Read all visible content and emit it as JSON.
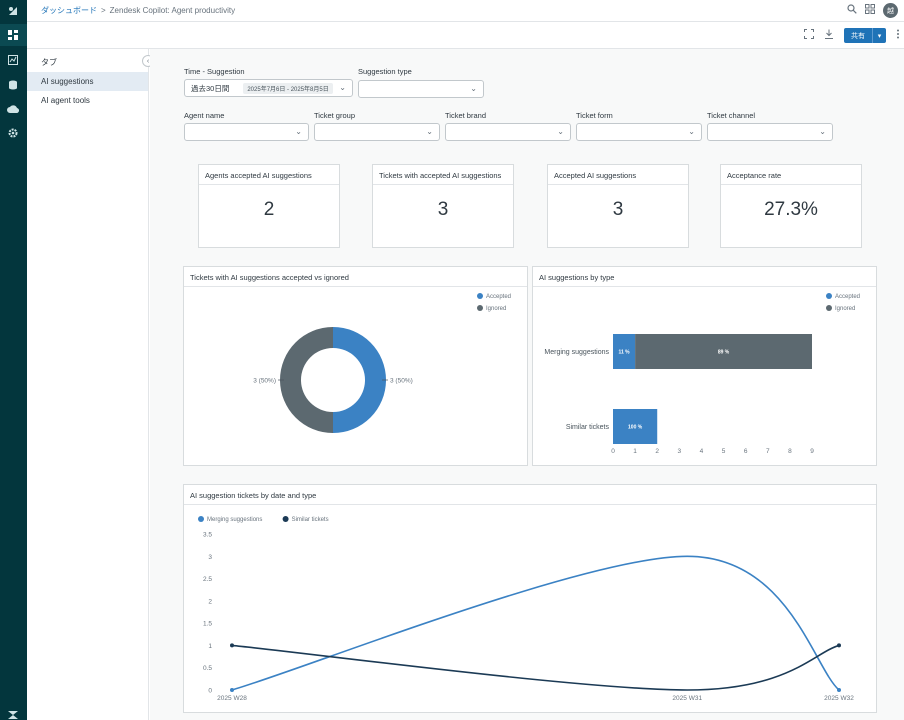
{
  "breadcrumb": {
    "dashboard": "ダッシュボード",
    "separator": ">",
    "current": "Zendesk Copilot: Agent productivity"
  },
  "user": {
    "avatar_initial": "越"
  },
  "toolbar": {
    "share_label": "共有"
  },
  "tabs": {
    "heading": "タブ",
    "items": [
      {
        "label": "AI suggestions",
        "active": true
      },
      {
        "label": "AI agent tools",
        "active": false
      }
    ]
  },
  "filters": {
    "time": {
      "label": "Time - Suggestion",
      "value": "過去30日間",
      "range": "2025年7月6日 - 2025年8月5日"
    },
    "suggestion_type": {
      "label": "Suggestion type",
      "value": ""
    },
    "agent_name": {
      "label": "Agent name",
      "value": ""
    },
    "ticket_group": {
      "label": "Ticket group",
      "value": ""
    },
    "ticket_brand": {
      "label": "Ticket brand",
      "value": ""
    },
    "ticket_form": {
      "label": "Ticket form",
      "value": ""
    },
    "ticket_channel": {
      "label": "Ticket channel",
      "value": ""
    }
  },
  "kpis": [
    {
      "title": "Agents accepted AI suggestions",
      "value": "2"
    },
    {
      "title": "Tickets with accepted AI suggestions",
      "value": "3"
    },
    {
      "title": "Accepted AI suggestions",
      "value": "3"
    },
    {
      "title": "Acceptance rate",
      "value": "27.3%"
    }
  ],
  "colors": {
    "accepted": "#3b82c4",
    "ignored": "#5c6970",
    "merging": "#3b82c4",
    "similar": "#1b3a55"
  },
  "chart_data": [
    {
      "type": "pie",
      "title": "Tickets with AI suggestions accepted vs ignored",
      "legend": [
        "Accepted",
        "Ignored"
      ],
      "legend_position": "top-right",
      "slices": [
        {
          "name": "Accepted",
          "value": 3,
          "label": "3 (50%)"
        },
        {
          "name": "Ignored",
          "value": 3,
          "label": "3 (50%)"
        }
      ]
    },
    {
      "type": "bar",
      "orientation": "horizontal",
      "stacked": true,
      "title": "AI suggestions by type",
      "legend": [
        "Accepted",
        "Ignored"
      ],
      "legend_position": "top-right",
      "categories": [
        "Merging suggestions",
        "Similar tickets"
      ],
      "series": [
        {
          "name": "Accepted",
          "values": [
            1,
            2
          ],
          "labels": [
            "11 %",
            "100 %"
          ]
        },
        {
          "name": "Ignored",
          "values": [
            8,
            0
          ],
          "labels": [
            "89 %",
            ""
          ]
        }
      ],
      "xticks": [
        "0",
        "1",
        "2",
        "3",
        "4",
        "5",
        "6",
        "7",
        "8",
        "9"
      ],
      "xlim": [
        0,
        9
      ]
    },
    {
      "type": "line",
      "title": "AI suggestion tickets by date and type",
      "legend": [
        "Merging suggestions",
        "Similar tickets"
      ],
      "legend_position": "top-left",
      "categories": [
        "2025 W28",
        "2025 W31",
        "2025 W32"
      ],
      "x": [
        28,
        31,
        32
      ],
      "series": [
        {
          "name": "Merging suggestions",
          "values": [
            0,
            3,
            0
          ]
        },
        {
          "name": "Similar tickets",
          "values": [
            1,
            0,
            1
          ]
        }
      ],
      "yticks": [
        "0",
        "0.5",
        "1",
        "1.5",
        "2",
        "2.5",
        "3",
        "3.5"
      ],
      "ylim": [
        0,
        3.5
      ]
    }
  ]
}
